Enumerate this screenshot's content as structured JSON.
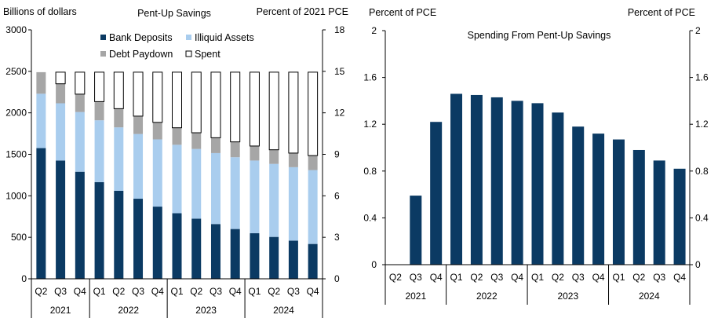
{
  "chart_data": [
    {
      "type": "bar",
      "stacked": true,
      "title": "Pent-Up Savings",
      "ylabel_left": "Billions of dollars",
      "ylabel_right": "Percent of 2021 PCE",
      "ylim_left": [
        0,
        3000
      ],
      "yticks_left": [
        "0",
        "500",
        "1000",
        "1500",
        "2000",
        "2500",
        "3000"
      ],
      "ylim_right": [
        0,
        18
      ],
      "yticks_right": [
        "0",
        "3",
        "6",
        "9",
        "12",
        "15",
        "18"
      ],
      "categories": [
        "Q2",
        "Q3",
        "Q4",
        "Q1",
        "Q2",
        "Q3",
        "Q4",
        "Q1",
        "Q2",
        "Q3",
        "Q4",
        "Q1",
        "Q2",
        "Q3",
        "Q4"
      ],
      "years": [
        {
          "label": "2021",
          "span": 3
        },
        {
          "label": "2022",
          "span": 4
        },
        {
          "label": "2023",
          "span": 4
        },
        {
          "label": "2024",
          "span": 4
        }
      ],
      "series": [
        {
          "name": "Bank Deposits",
          "color": "#0b3a63",
          "values": [
            1575,
            1425,
            1290,
            1165,
            1060,
            965,
            870,
            790,
            725,
            660,
            600,
            550,
            505,
            460,
            420
          ]
        },
        {
          "name": "Illiquid Assets",
          "color": "#a9cdee",
          "values": [
            655,
            690,
            720,
            745,
            765,
            780,
            810,
            825,
            840,
            855,
            865,
            875,
            880,
            885,
            890
          ]
        },
        {
          "name": "Debt Paydown",
          "color": "#a6a6a6",
          "values": [
            260,
            235,
            215,
            225,
            225,
            215,
            205,
            205,
            195,
            185,
            185,
            175,
            170,
            170,
            175
          ]
        },
        {
          "name": "Spent",
          "color": "#ffffff",
          "values": [
            0,
            140,
            265,
            355,
            440,
            530,
            605,
            670,
            730,
            790,
            840,
            890,
            935,
            975,
            1005
          ]
        }
      ],
      "legend": [
        {
          "name": "Bank Deposits",
          "color": "#0b3a63"
        },
        {
          "name": "Illiquid Assets",
          "color": "#a9cdee"
        },
        {
          "name": "Debt Paydown",
          "color": "#a6a6a6"
        },
        {
          "name": "Spent",
          "color": "#ffffff"
        }
      ]
    },
    {
      "type": "bar",
      "title": "Spending From Pent-Up Savings",
      "ylabel_left": "Percent of PCE",
      "ylabel_right": "Percent of PCE",
      "ylim": [
        0,
        2
      ],
      "yticks": [
        "0",
        "0.4",
        "0.8",
        "1.2",
        "1.6",
        "2"
      ],
      "categories": [
        "Q2",
        "Q3",
        "Q4",
        "Q1",
        "Q2",
        "Q3",
        "Q4",
        "Q1",
        "Q2",
        "Q3",
        "Q4",
        "Q1",
        "Q2",
        "Q3",
        "Q4"
      ],
      "years": [
        {
          "label": "2021",
          "span": 3
        },
        {
          "label": "2022",
          "span": 4
        },
        {
          "label": "2023",
          "span": 4
        },
        {
          "label": "2024",
          "span": 4
        }
      ],
      "color": "#0b3a63",
      "values": [
        null,
        0.59,
        1.22,
        1.46,
        1.45,
        1.43,
        1.4,
        1.38,
        1.3,
        1.18,
        1.12,
        1.07,
        0.98,
        0.89,
        0.82
      ]
    }
  ]
}
